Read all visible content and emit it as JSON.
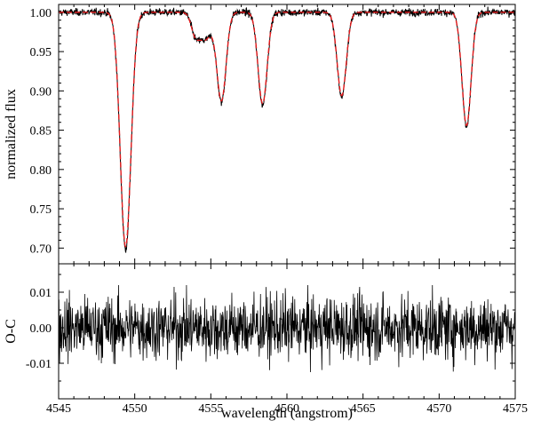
{
  "chart_data": [
    {
      "type": "line",
      "panel": "top",
      "xlim": [
        4545,
        4575
      ],
      "ylim": [
        0.68,
        1.01
      ],
      "ylabel": "normalized flux",
      "yticks": [
        "1.00",
        "0.95",
        "0.90",
        "0.85",
        "0.80",
        "0.75",
        "0.70"
      ],
      "ytick_values": [
        1.0,
        0.95,
        0.9,
        0.85,
        0.8,
        0.75,
        0.7
      ],
      "grid": false,
      "series": [
        {
          "role": "observed",
          "color": "#000000",
          "style": "solid",
          "continuum": 1.0,
          "noise_sigma": 0.0045,
          "lines": [
            {
              "center": 4549.4,
              "depth": 0.302,
              "width": 0.35
            },
            {
              "center": 4553.95,
              "depth": 0.02,
              "width": 0.25
            },
            {
              "center": 4554.6,
              "depth": 0.035,
              "width": 0.45
            },
            {
              "center": 4555.7,
              "depth": 0.113,
              "width": 0.3
            },
            {
              "center": 4558.4,
              "depth": 0.118,
              "width": 0.3
            },
            {
              "center": 4563.6,
              "depth": 0.108,
              "width": 0.3
            },
            {
              "center": 4571.8,
              "depth": 0.146,
              "width": 0.3
            }
          ]
        },
        {
          "role": "model",
          "color": "#e31a1c",
          "style": "dashed",
          "continuum": 1.0,
          "lines": [
            {
              "center": 4549.4,
              "depth": 0.298,
              "width": 0.35
            },
            {
              "center": 4553.95,
              "depth": 0.02,
              "width": 0.25
            },
            {
              "center": 4554.6,
              "depth": 0.035,
              "width": 0.45
            },
            {
              "center": 4555.7,
              "depth": 0.111,
              "width": 0.3
            },
            {
              "center": 4558.4,
              "depth": 0.116,
              "width": 0.3
            },
            {
              "center": 4563.6,
              "depth": 0.106,
              "width": 0.3
            },
            {
              "center": 4571.8,
              "depth": 0.144,
              "width": 0.3
            }
          ]
        }
      ]
    },
    {
      "type": "line",
      "panel": "bottom",
      "xlim": [
        4545,
        4575
      ],
      "ylim": [
        -0.02,
        0.018
      ],
      "xlabel": "wavelength (angstrom)",
      "ylabel": "O-C",
      "xticks": [
        "4545",
        "4550",
        "4555",
        "4560",
        "4565",
        "4570",
        "4575"
      ],
      "xtick_values": [
        4545,
        4550,
        4555,
        4560,
        4565,
        4570,
        4575
      ],
      "yticks": [
        "0.01",
        "0.00",
        "-0.01"
      ],
      "ytick_values": [
        0.01,
        0.0,
        -0.01
      ],
      "grid": false,
      "series": [
        {
          "role": "residuals",
          "color": "#000000",
          "style": "solid",
          "mean": 0.0,
          "noise_sigma": 0.0045,
          "range": [
            -0.017,
            0.012
          ]
        }
      ]
    }
  ]
}
